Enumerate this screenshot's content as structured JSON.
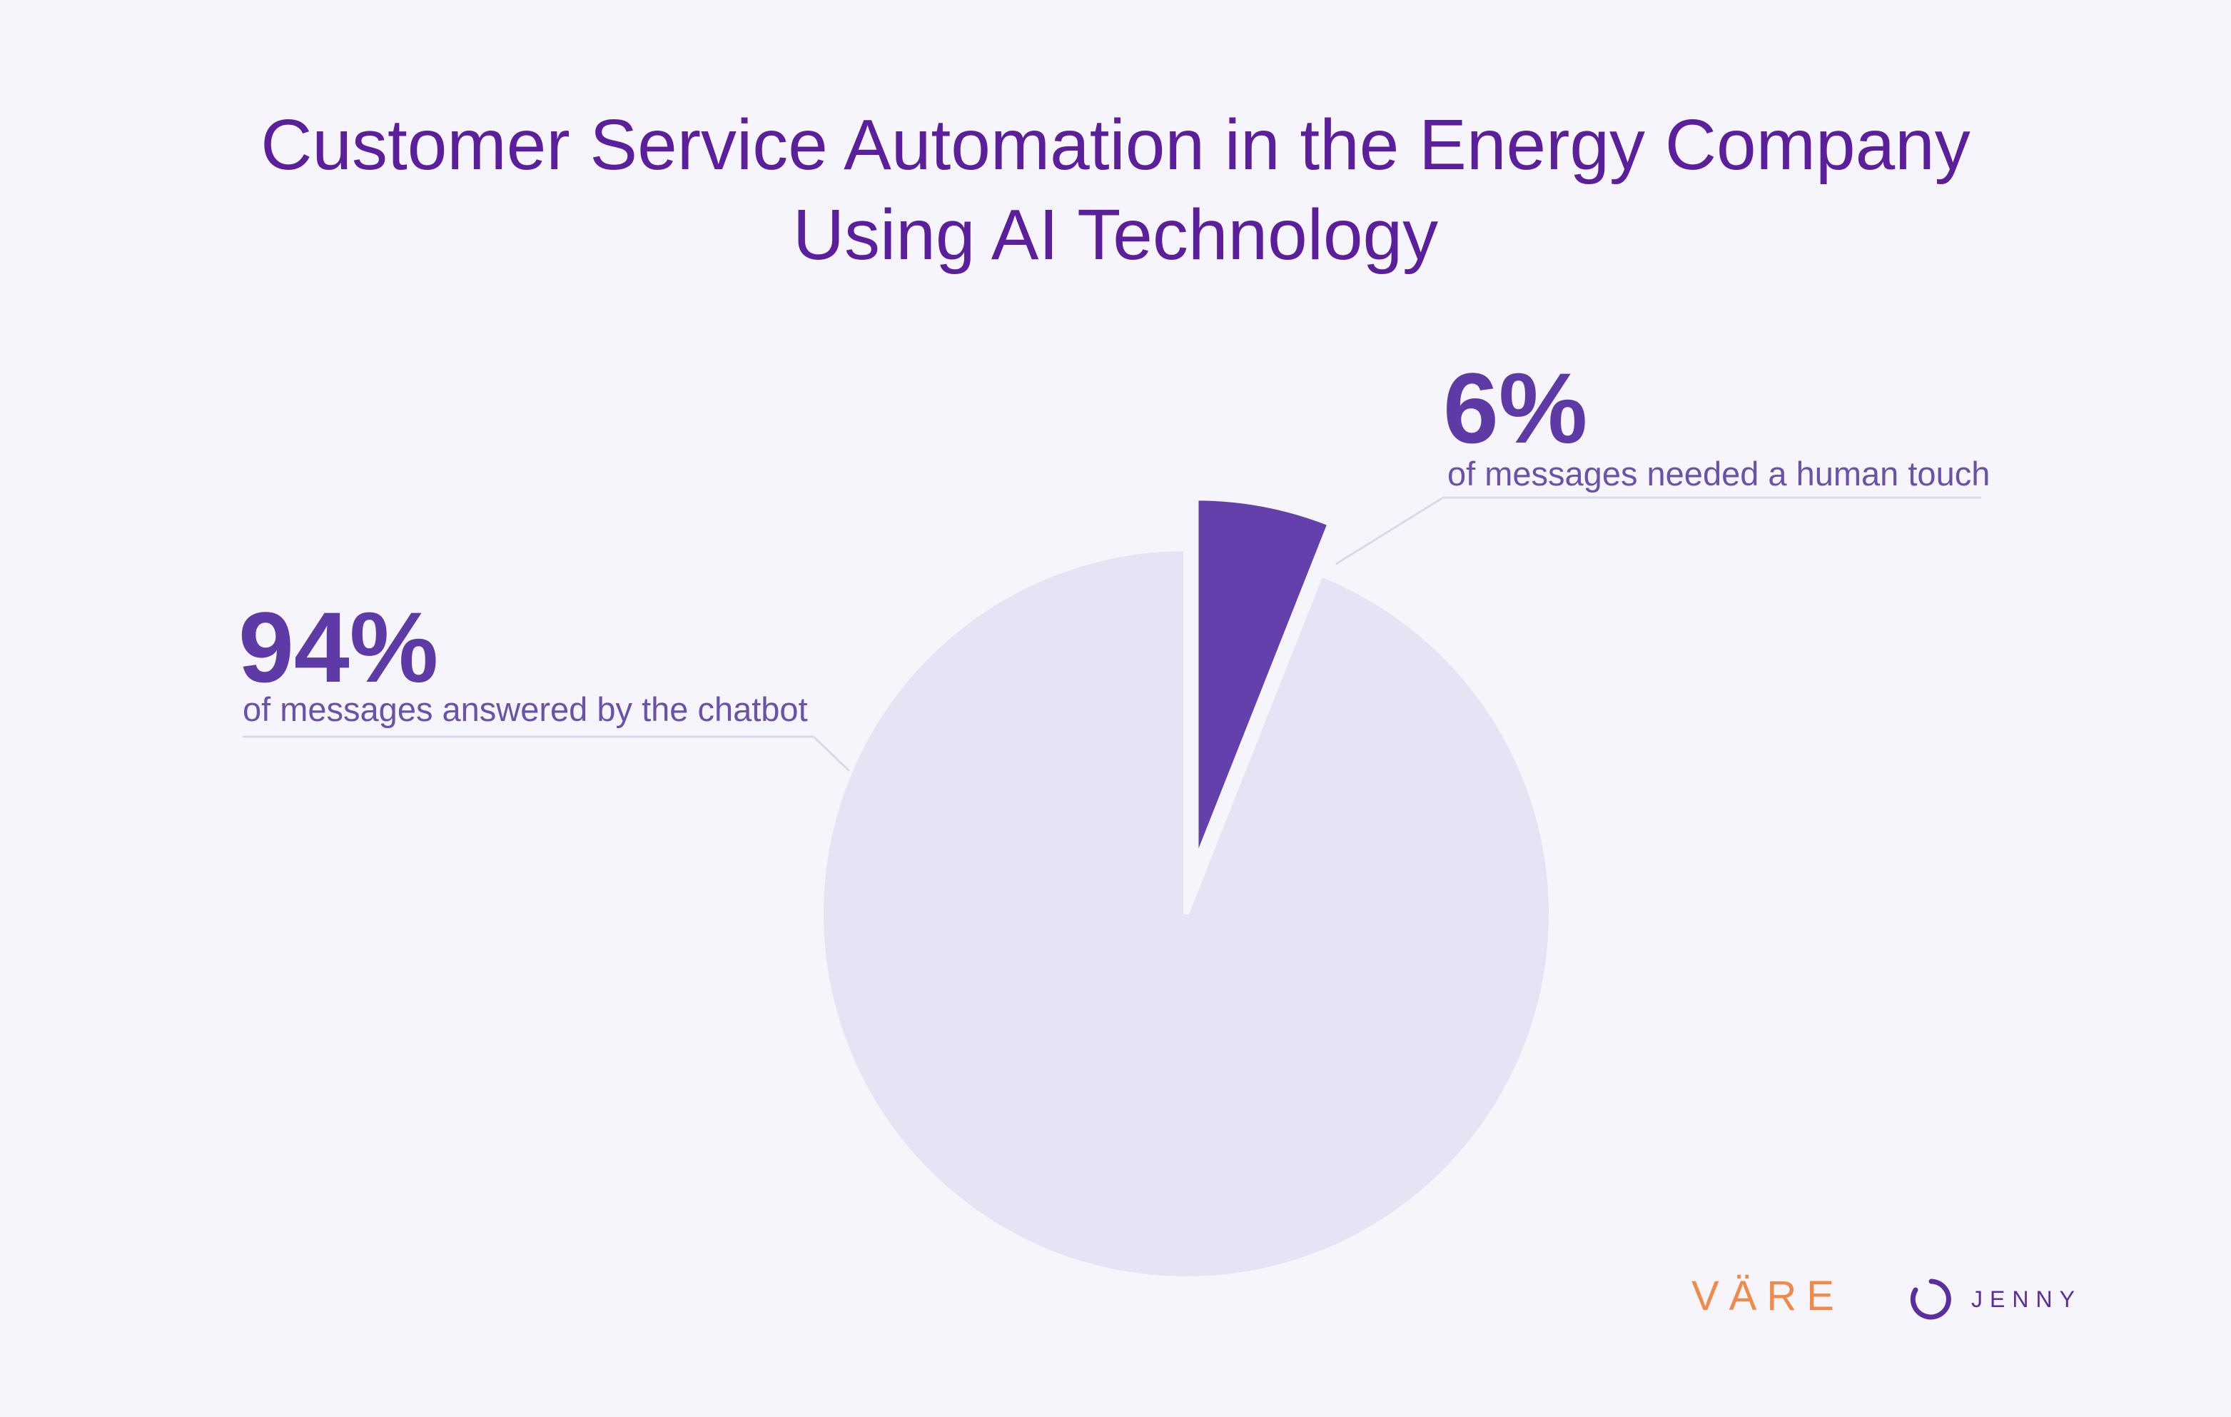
{
  "title_line1": "Customer Service Automation in the Energy Company",
  "title_line2": "Using AI Technology",
  "colors": {
    "background": "#f6f5fb",
    "title": "#5b1f9c",
    "highlight_slice": "#6440ad",
    "main_slice": "#e6e3f5",
    "label_value": "#5e3aa6",
    "label_text": "#6a52aa",
    "leader_line": "#dcd8ec",
    "vare_logo": "#f08a4b",
    "jenny_logo": "#5b2ea0"
  },
  "chart_data": {
    "type": "pie",
    "title": "Customer Service Automation in the Energy Company Using AI Technology",
    "slices": [
      {
        "value": 6,
        "label": "6%",
        "description": "of messages needed a human touch",
        "highlighted": true
      },
      {
        "value": 94,
        "label": "94%",
        "description": "of messages answered by the chatbot",
        "highlighted": false
      }
    ],
    "start_angle": "12 o'clock",
    "direction": "clockwise"
  },
  "logos": {
    "vare": "VÄRE",
    "jenny": "JENNY",
    "jenny_icon": "ring-icon"
  }
}
